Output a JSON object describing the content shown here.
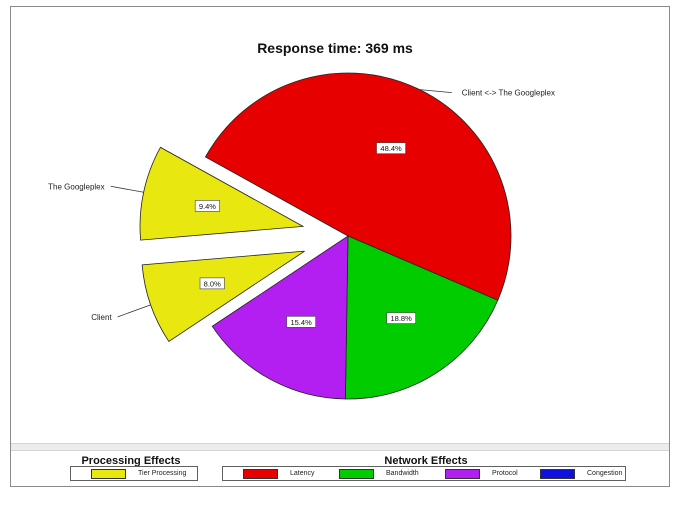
{
  "chart_data": {
    "type": "pie",
    "title": "Response time: 369 ms",
    "slices": [
      {
        "label": "Client <-> The Googleplex",
        "percent": 48.4,
        "value_label": "48.4%",
        "color": "#e60000",
        "exploded": false,
        "show_label": true
      },
      {
        "label": "",
        "percent": 18.8,
        "value_label": "18.8%",
        "color": "#00cc00",
        "exploded": false,
        "show_label": false
      },
      {
        "label": "",
        "percent": 15.4,
        "value_label": "15.4%",
        "color": "#b31ff0",
        "exploded": false,
        "show_label": false
      },
      {
        "label": "Client",
        "percent": 8.0,
        "value_label": "8.0%",
        "color": "#e8e810",
        "exploded": true,
        "show_label": true
      },
      {
        "label": "The Googleplex",
        "percent": 9.4,
        "value_label": "9.4%",
        "color": "#e8e810",
        "exploded": true,
        "show_label": true
      }
    ],
    "legends": [
      {
        "title": "Processing Effects",
        "entries": [
          {
            "label": "Tier Processing",
            "color": "#e8e810"
          }
        ]
      },
      {
        "title": "Network Effects",
        "entries": [
          {
            "label": "Latency",
            "color": "#e60000"
          },
          {
            "label": "Bandwidth",
            "color": "#00cc00"
          },
          {
            "label": "Protocol",
            "color": "#b31ff0"
          },
          {
            "label": "Congestion",
            "color": "#1010e0"
          }
        ]
      }
    ]
  }
}
